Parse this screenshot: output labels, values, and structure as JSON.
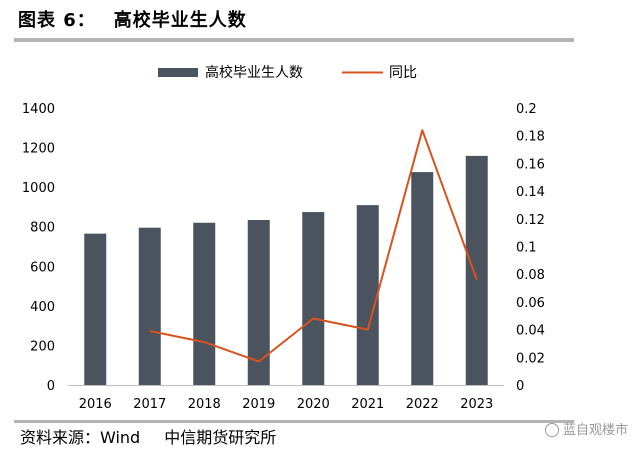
{
  "figure": {
    "label": "图表 6：",
    "title": "高校毕业生人数"
  },
  "source": {
    "prefix": "资料来源：Wind",
    "org": "中信期货研究所"
  },
  "watermark": "蓝自观楼市",
  "colors": {
    "bar": "#4a535e",
    "line": "#d9531e",
    "rule": "#b3b3b3"
  },
  "chart_data": {
    "type": "bar",
    "categories": [
      "2016",
      "2017",
      "2018",
      "2019",
      "2020",
      "2021",
      "2022",
      "2023"
    ],
    "series": [
      {
        "name": "高校毕业生人数",
        "type": "bar",
        "axis": "left",
        "values": [
          765,
          795,
          820,
          834,
          874,
          909,
          1076,
          1158
        ]
      },
      {
        "name": "同比",
        "type": "line",
        "axis": "right",
        "values": [
          null,
          0.039,
          0.031,
          0.017,
          0.048,
          0.04,
          0.184,
          0.076
        ]
      }
    ],
    "y_left": {
      "min": 0,
      "max": 1400,
      "ticks": [
        "0",
        "200",
        "400",
        "600",
        "800",
        "1000",
        "1200",
        "1400"
      ]
    },
    "y_right": {
      "min": 0,
      "max": 0.2,
      "ticks": [
        "0",
        "0.02",
        "0.04",
        "0.06",
        "0.08",
        "0.1",
        "0.12",
        "0.14",
        "0.16",
        "0.18",
        "0.2"
      ]
    },
    "legend_position": "top-center",
    "grid": false
  }
}
